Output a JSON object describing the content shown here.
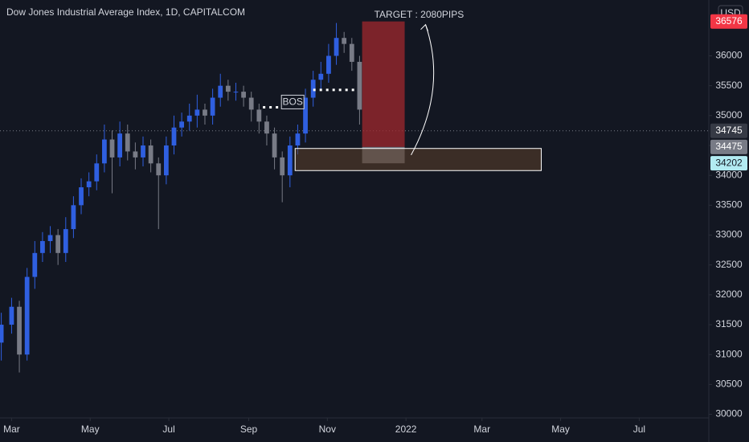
{
  "chart_data": {
    "type": "candlestick",
    "title": "Dow Jones Industrial Average Index, 1D, CAPITALCOM",
    "currency": "USD",
    "colors": {
      "up": "#2f5fe0",
      "down": "#787b86"
    },
    "candles": {
      "x": [
        -8,
        0,
        6,
        12,
        18,
        24,
        30,
        36,
        42,
        48,
        54,
        60,
        66,
        72,
        78,
        84,
        90,
        96,
        102,
        108,
        114,
        120,
        126,
        132,
        138,
        144,
        150,
        156,
        162,
        168,
        174,
        180,
        186,
        192,
        198,
        204,
        210,
        216,
        222,
        228,
        234,
        240,
        246,
        252,
        258,
        264,
        270
      ],
      "open": [
        31200,
        31500,
        31800,
        31000,
        32300,
        32700,
        32900,
        33000,
        32700,
        33100,
        33500,
        33800,
        33900,
        34200,
        34600,
        34300,
        34700,
        34400,
        34300,
        34500,
        34200,
        34000,
        34500,
        34800,
        34900,
        35000,
        35100,
        35000,
        35300,
        35500,
        35400,
        35400,
        35300,
        35100,
        34900,
        34700,
        34300,
        34000,
        34500,
        34700,
        35300,
        35600,
        35700,
        36000,
        36300,
        36200,
        35900
      ],
      "high": [
        31700,
        31950,
        31900,
        32450,
        32900,
        33050,
        33150,
        33100,
        33300,
        33650,
        33950,
        34050,
        34350,
        34850,
        34750,
        34900,
        34850,
        34550,
        34650,
        34600,
        34300,
        34650,
        35000,
        35050,
        35200,
        35350,
        35200,
        35450,
        35700,
        35600,
        35550,
        35500,
        35400,
        35200,
        35000,
        34800,
        34400,
        34650,
        34850,
        35450,
        35750,
        35900,
        36200,
        36550,
        36400,
        36300,
        36000
      ],
      "low": [
        30900,
        31350,
        30700,
        30900,
        32100,
        32550,
        32700,
        32500,
        32550,
        32950,
        33350,
        33650,
        33750,
        34050,
        33700,
        34150,
        34250,
        34100,
        34150,
        34050,
        33100,
        33850,
        34350,
        34650,
        34750,
        34800,
        34850,
        34850,
        35150,
        35250,
        35250,
        35150,
        34900,
        34700,
        34500,
        34100,
        33550,
        33800,
        34350,
        34550,
        35150,
        35450,
        35550,
        35850,
        36050,
        35750,
        34850
      ],
      "close": [
        31500,
        31800,
        31000,
        32300,
        32700,
        32900,
        33000,
        32700,
        33100,
        33500,
        33800,
        33900,
        34200,
        34600,
        34300,
        34700,
        34400,
        34300,
        34500,
        34200,
        34000,
        34500,
        34800,
        34900,
        35000,
        35100,
        35000,
        35300,
        35500,
        35400,
        35400,
        35300,
        35100,
        34900,
        34700,
        34300,
        34000,
        34500,
        34700,
        35300,
        35600,
        35700,
        36000,
        36300,
        36200,
        35900,
        35100
      ]
    },
    "xlim": [
      -9,
      541
    ],
    "ylim": [
      29940,
      36935
    ],
    "yticks": [
      30000,
      30500,
      31000,
      31500,
      32000,
      32500,
      33000,
      33500,
      34000,
      34500,
      35000,
      35500,
      36000
    ],
    "xticks": [
      {
        "value": 0,
        "label": "Mar"
      },
      {
        "value": 61,
        "label": "May"
      },
      {
        "value": 122,
        "label": "Jul"
      },
      {
        "value": 184,
        "label": "Sep"
      },
      {
        "value": 245,
        "label": "Nov"
      },
      {
        "value": 306,
        "label": "2022"
      },
      {
        "value": 365,
        "label": "Mar"
      },
      {
        "value": 426,
        "label": "May"
      },
      {
        "value": 487,
        "label": "Jul"
      }
    ],
    "current_price": 34745,
    "price_labels": [
      {
        "value": 36576,
        "color": "#f23645",
        "text_color": "#ffffff"
      },
      {
        "value": 34745,
        "color": "#363a45",
        "text_color": "#ffffff"
      },
      {
        "value": 34475,
        "color": "#787b86",
        "text_color": "#ffffff"
      },
      {
        "value": 34202,
        "color": "#b2ebf2",
        "text_color": "#131722"
      }
    ],
    "boxes": [
      {
        "x": [
          272,
          305
        ],
        "y": [
          34475,
          36576
        ],
        "color": "rgba(160,40,45,0.75)",
        "stroke": "none"
      },
      {
        "x": [
          272,
          305
        ],
        "y": [
          34202,
          34475
        ],
        "color": "rgba(120,123,134,0.85)",
        "stroke": "none"
      },
      {
        "x": [
          220,
          411
        ],
        "y": [
          34080,
          34450
        ],
        "color": "rgba(92,64,42,0.55)",
        "stroke": "#ffffff"
      }
    ],
    "levels": [
      {
        "value": 35140,
        "x": [
          195,
          226
        ]
      },
      {
        "value": 35430,
        "x": [
          234,
          266
        ]
      }
    ],
    "annotations": {
      "bos": "BOS",
      "target": "TARGET : 2080PIPS"
    }
  }
}
